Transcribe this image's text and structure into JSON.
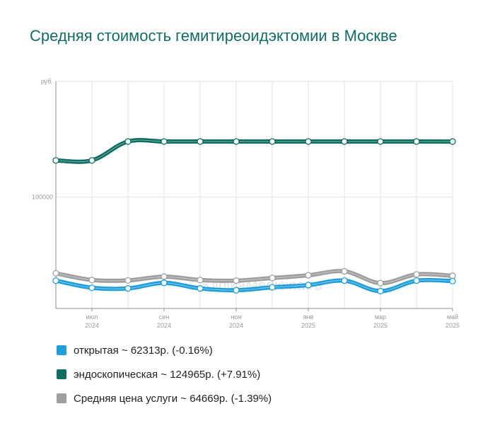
{
  "title": "Средняя стоимость гемитиреоидэктомии в Москве",
  "watermark": "© KlinikaMedicina.ru",
  "chart_data": {
    "type": "line",
    "y_unit": "руб.",
    "y_ticks": [
      {
        "value": 100000,
        "label": "100000"
      }
    ],
    "ylim": [
      50000,
      152000
    ],
    "x_ticks": [
      {
        "index": 1,
        "month": "июл",
        "year": "2024"
      },
      {
        "index": 3,
        "month": "сен",
        "year": "2024"
      },
      {
        "index": 5,
        "month": "ноя",
        "year": "2024"
      },
      {
        "index": 7,
        "month": "янв",
        "year": "2025"
      },
      {
        "index": 9,
        "month": "мар",
        "year": "2025"
      },
      {
        "index": 11,
        "month": "май",
        "year": "2025"
      }
    ],
    "x": [
      "2024-06",
      "2024-07",
      "2024-08",
      "2024-09",
      "2024-10",
      "2024-11",
      "2024-12",
      "2025-01",
      "2025-02",
      "2025-03",
      "2025-04",
      "2025-05"
    ],
    "grid": true,
    "series": [
      {
        "name": "открытая",
        "color": "#1e9fdc",
        "values": [
          62500,
          59300,
          59000,
          61500,
          59000,
          58200,
          59500,
          60500,
          62500,
          57800,
          62500,
          62313
        ]
      },
      {
        "name": "эндоскопическая",
        "color": "#0f6e62",
        "values": [
          116500,
          116500,
          125000,
          125000,
          125000,
          125000,
          125000,
          125000,
          125000,
          125000,
          125000,
          124965
        ]
      },
      {
        "name": "Средняя цена услуги",
        "color": "#9e9e9e",
        "values": [
          65800,
          62800,
          62600,
          64300,
          62800,
          62500,
          63700,
          64900,
          66700,
          61400,
          65300,
          64669
        ]
      }
    ],
    "legend_texts": [
      "открытая ~ 62313р. (-0.16%)",
      "эндоскопическая ~ 124965р. (+7.91%)",
      "Средняя цена услуги ~ 64669р. (-1.39%)"
    ]
  }
}
